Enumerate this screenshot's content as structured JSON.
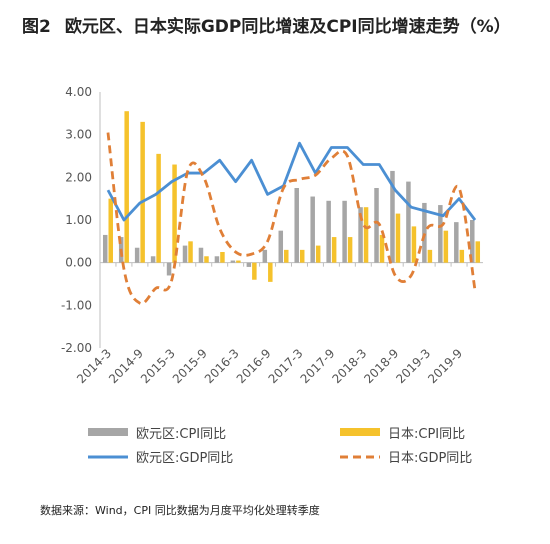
{
  "header": {
    "figure_no": "图2",
    "title": "欧元区、日本实际GDP同比增速及CPI同比增速走势（%）"
  },
  "footer": {
    "source": "数据来源：Wind，CPI 同比数据为月度平均化处理转季度"
  },
  "colors": {
    "euro_cpi": "#a6a6a6",
    "japan_cpi": "#f5c22c",
    "euro_gdp": "#4b8fd3",
    "japan_gdp": "#e07f37",
    "axis": "#bfbfbf",
    "text": "#555555"
  },
  "chart_data": {
    "type": "bar",
    "title": "欧元区、日本实际GDP同比增速及CPI同比增速走势（%）",
    "ylim": [
      -2,
      4
    ],
    "yticks": [
      "4.00",
      "3.00",
      "2.00",
      "1.00",
      "0.00",
      "-1.00",
      "-2.00"
    ],
    "ytick_values": [
      4,
      3,
      2,
      1,
      0,
      -1,
      -2
    ],
    "grid": false,
    "legend_position": "bottom",
    "categories": [
      "2014-3",
      "2014-6",
      "2014-9",
      "2014-12",
      "2015-3",
      "2015-6",
      "2015-9",
      "2015-12",
      "2016-3",
      "2016-6",
      "2016-9",
      "2016-12",
      "2017-3",
      "2017-6",
      "2017-9",
      "2017-12",
      "2018-3",
      "2018-6",
      "2018-9",
      "2018-12",
      "2019-3",
      "2019-6",
      "2019-9",
      "2019-12"
    ],
    "xtick_labels": [
      "2014-3",
      "2014-9",
      "2015-3",
      "2015-9",
      "2016-3",
      "2016-9",
      "2017-3",
      "2017-9",
      "2018-3",
      "2018-9",
      "2019-3",
      "2019-9"
    ],
    "series": [
      {
        "name": "欧元区:CPI同比",
        "kind": "bar",
        "values": [
          0.65,
          0.6,
          0.35,
          0.15,
          -0.3,
          0.4,
          0.35,
          0.15,
          0.05,
          -0.1,
          0.3,
          0.75,
          1.75,
          1.55,
          1.45,
          1.45,
          1.3,
          1.75,
          2.15,
          1.9,
          1.4,
          1.35,
          0.95,
          1.0
        ]
      },
      {
        "name": "日本:CPI同比",
        "kind": "bar",
        "values": [
          1.5,
          3.55,
          3.3,
          2.55,
          2.3,
          0.5,
          0.15,
          0.25,
          0.05,
          -0.4,
          -0.45,
          0.3,
          0.3,
          0.4,
          0.6,
          0.6,
          1.3,
          0.65,
          1.15,
          0.85,
          0.3,
          0.75,
          0.3,
          0.5
        ]
      },
      {
        "name": "欧元区:GDP同比",
        "kind": "line",
        "values": [
          1.7,
          1.0,
          1.4,
          1.6,
          1.9,
          2.1,
          2.1,
          2.4,
          1.9,
          2.4,
          1.6,
          1.8,
          2.8,
          2.1,
          2.7,
          2.7,
          2.3,
          2.3,
          1.7,
          1.3,
          1.2,
          1.1,
          1.5,
          1.0
        ]
      },
      {
        "name": "日本:GDP同比",
        "kind": "dashed-line",
        "values": [
          3.05,
          -0.15,
          -0.95,
          -0.6,
          -0.4,
          2.15,
          2.0,
          0.8,
          0.25,
          0.2,
          0.5,
          1.75,
          1.95,
          2.05,
          2.45,
          2.5,
          0.9,
          0.9,
          -0.3,
          -0.3,
          0.8,
          0.9,
          1.75,
          -0.65
        ]
      }
    ]
  }
}
